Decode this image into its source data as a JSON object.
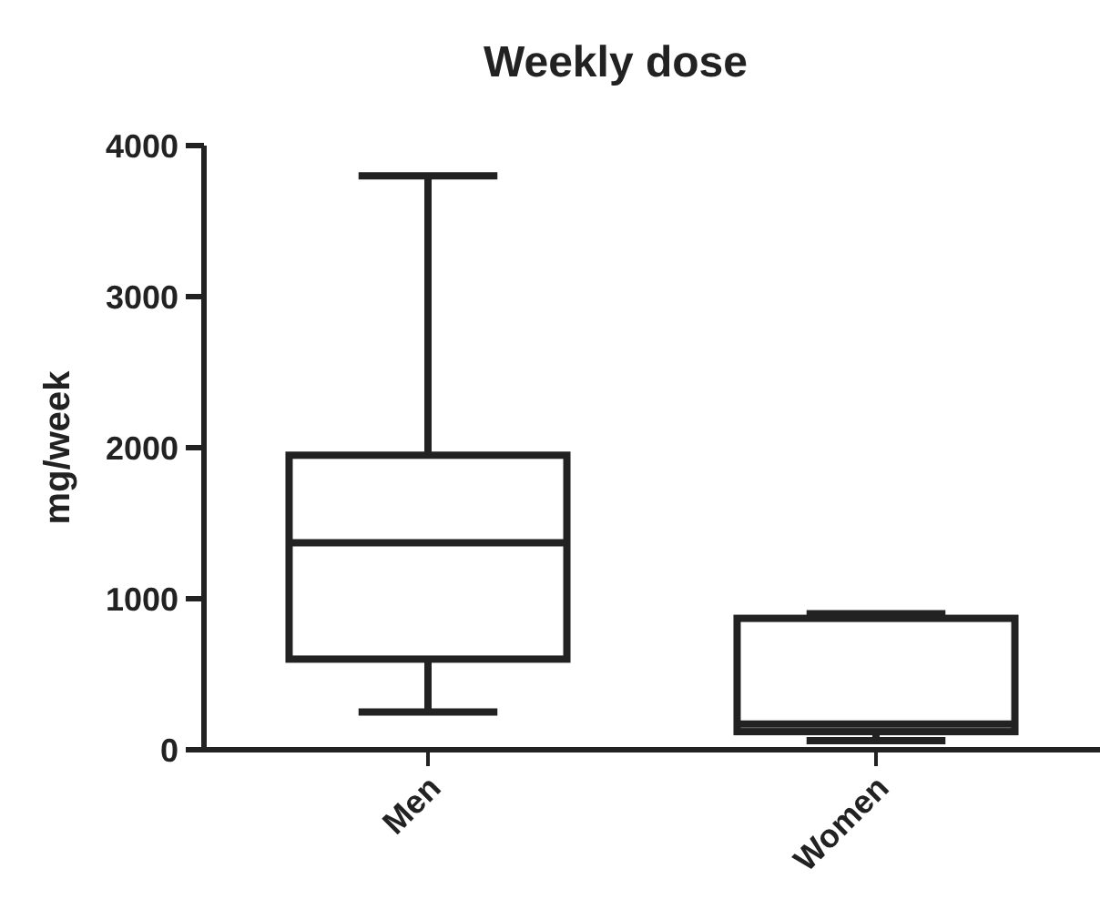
{
  "chart_data": {
    "type": "box",
    "title": "Weekly dose",
    "ylabel": "mg/week",
    "categories": [
      "Men",
      "Women"
    ],
    "boxes": [
      {
        "low": 250,
        "q1": 600,
        "median": 1370,
        "q3": 1950,
        "high": 3800
      },
      {
        "low": 60,
        "q1": 120,
        "median": 170,
        "q3": 870,
        "high": 900
      }
    ],
    "ylim": [
      0,
      4000
    ],
    "yticks": [
      0,
      1000,
      2000,
      3000,
      4000
    ],
    "grid": false
  }
}
